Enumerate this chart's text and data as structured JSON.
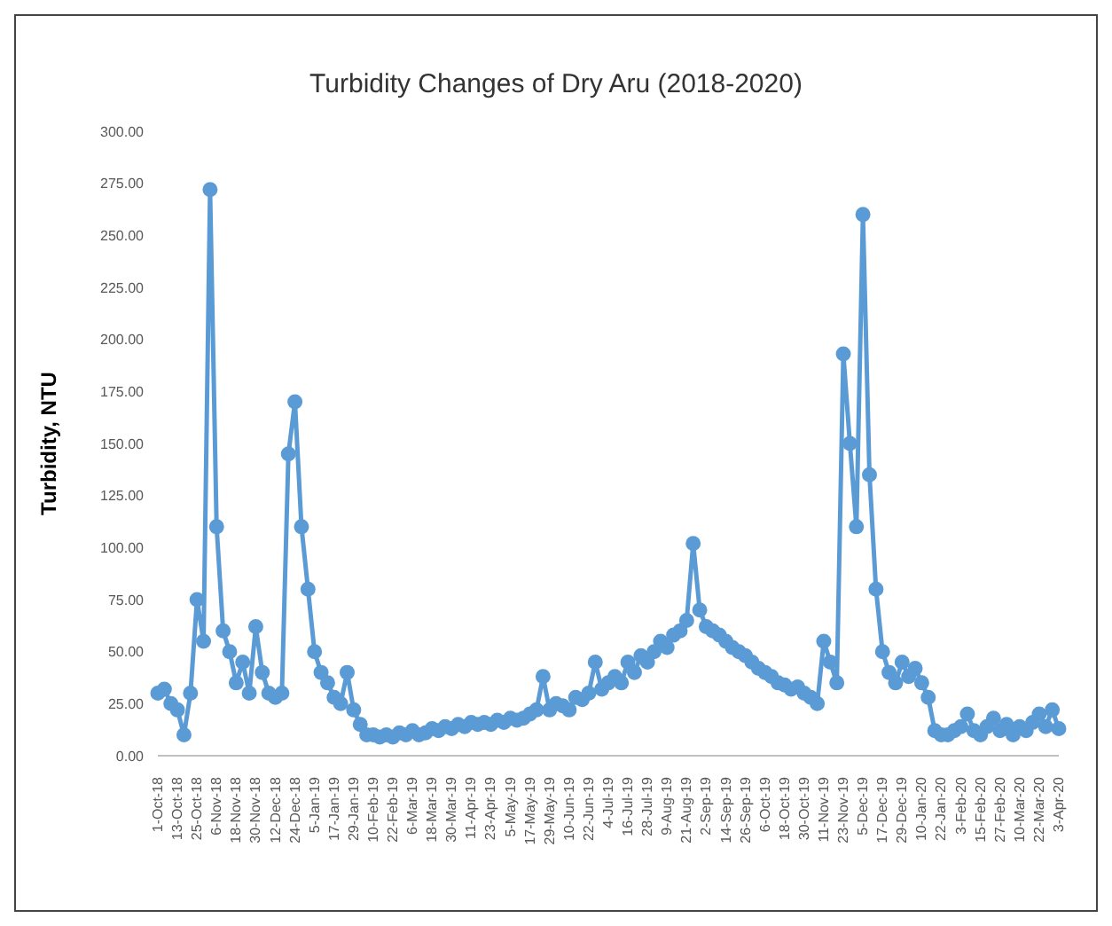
{
  "chart_data": {
    "type": "line",
    "title": "Turbidity Changes of Dry Aru (2018-2020)",
    "ylabel": "Turbidity, NTU",
    "categories": [
      "1-Oct-18",
      null,
      null,
      "13-Oct-18",
      null,
      null,
      "25-Oct-18",
      null,
      null,
      "6-Nov-18",
      null,
      null,
      "18-Nov-18",
      null,
      null,
      "30-Nov-18",
      null,
      null,
      "12-Dec-18",
      null,
      null,
      "24-Dec-18",
      null,
      null,
      "5-Jan-19",
      null,
      null,
      "17-Jan-19",
      null,
      null,
      "29-Jan-19",
      null,
      null,
      "10-Feb-19",
      null,
      null,
      "22-Feb-19",
      null,
      null,
      "6-Mar-19",
      null,
      null,
      "18-Mar-19",
      null,
      null,
      "30-Mar-19",
      null,
      null,
      "11-Apr-19",
      null,
      null,
      "23-Apr-19",
      null,
      null,
      "5-May-19",
      null,
      null,
      "17-May-19",
      null,
      null,
      "29-May-19",
      null,
      null,
      "10-Jun-19",
      null,
      null,
      "22-Jun-19",
      null,
      null,
      "4-Jul-19",
      null,
      null,
      "16-Jul-19",
      null,
      null,
      "28-Jul-19",
      null,
      null,
      "9-Aug-19",
      null,
      null,
      "21-Aug-19",
      null,
      null,
      "2-Sep-19",
      null,
      null,
      "14-Sep-19",
      null,
      null,
      "26-Sep-19",
      null,
      null,
      "6-Oct-19",
      null,
      null,
      "18-Oct-19",
      null,
      null,
      "30-Oct-19",
      null,
      null,
      "11-Nov-19",
      null,
      null,
      "23-Nov-19",
      null,
      null,
      "5-Dec-19",
      null,
      null,
      "17-Dec-19",
      null,
      null,
      "29-Dec-19",
      null,
      null,
      "10-Jan-20",
      null,
      null,
      "22-Jan-20",
      null,
      null,
      "3-Feb-20",
      null,
      null,
      "15-Feb-20",
      null,
      null,
      "27-Feb-20",
      null,
      null,
      "10-Mar-20",
      null,
      null,
      "22-Mar-20",
      null,
      null,
      "3-Apr-20"
    ],
    "series": [
      {
        "color": "#5b9bd5",
        "values": [
          30,
          32,
          25,
          22,
          10,
          30,
          75,
          55,
          272,
          110,
          60,
          50,
          35,
          45,
          30,
          62,
          40,
          30,
          28,
          30,
          145,
          170,
          110,
          80,
          50,
          40,
          35,
          28,
          25,
          40,
          22,
          15,
          10,
          10,
          9,
          10,
          9,
          11,
          10,
          12,
          10,
          11,
          13,
          12,
          14,
          13,
          15,
          14,
          16,
          15,
          16,
          15,
          17,
          16,
          18,
          17,
          18,
          20,
          22,
          38,
          22,
          25,
          24,
          22,
          28,
          27,
          30,
          45,
          32,
          35,
          38,
          35,
          45,
          40,
          48,
          45,
          50,
          55,
          52,
          58,
          60,
          65,
          102,
          70,
          62,
          60,
          58,
          55,
          52,
          50,
          48,
          45,
          42,
          40,
          38,
          35,
          34,
          32,
          33,
          30,
          28,
          25,
          55,
          45,
          35,
          193,
          150,
          110,
          260,
          135,
          80,
          50,
          40,
          35,
          45,
          38,
          42,
          35,
          28,
          12,
          10,
          10,
          12,
          14,
          20,
          12,
          10,
          14,
          18,
          12,
          15,
          10,
          14,
          12,
          16,
          20,
          14,
          22,
          13
        ]
      }
    ],
    "ylim": [
      0,
      300
    ],
    "yticks": [
      {
        "value": 0,
        "label": "0.00"
      },
      {
        "value": 25,
        "label": "25.00"
      },
      {
        "value": 50,
        "label": "50.00"
      },
      {
        "value": 75,
        "label": "75.00"
      },
      {
        "value": 100,
        "label": "100.00"
      },
      {
        "value": 125,
        "label": "125.00"
      },
      {
        "value": 150,
        "label": "150.00"
      },
      {
        "value": 175,
        "label": "175.00"
      },
      {
        "value": 200,
        "label": "200.00"
      },
      {
        "value": 225,
        "label": "225.00"
      },
      {
        "value": 250,
        "label": "250.00"
      },
      {
        "value": 275,
        "label": "275.00"
      },
      {
        "value": 300,
        "label": "300.00"
      }
    ],
    "marker": "circle",
    "line_style": "solid",
    "grid": false,
    "legend": false
  }
}
